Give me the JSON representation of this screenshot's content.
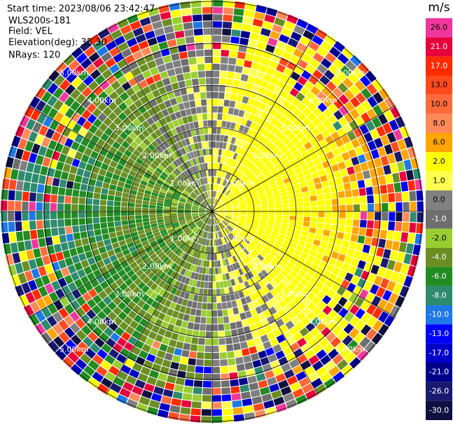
{
  "header": {
    "start_time": "Start time: 2023/08/06 23:42:47",
    "instrument": "WLS200s-181",
    "field": "Field: VEL",
    "elevation": "Elevation(deg): 35.30",
    "nrays": "NRays: 120"
  },
  "colorbar": {
    "unit": "m/s",
    "levels": [
      {
        "value": 26,
        "label": "26.0",
        "color": "#f0389c"
      },
      {
        "value": 21,
        "label": "21.0",
        "color": "#e8003c"
      },
      {
        "value": 17,
        "label": "17.0",
        "color": "#ff2a00"
      },
      {
        "value": 13,
        "label": "13.0",
        "color": "#ff4a1e"
      },
      {
        "value": 10,
        "label": "10.0",
        "color": "#ff6a3c"
      },
      {
        "value": 8,
        "label": "8.0",
        "color": "#ff8a5a"
      },
      {
        "value": 6,
        "label": "6.0",
        "color": "#ffa500"
      },
      {
        "value": 2,
        "label": "2.0",
        "color": "#ffff00"
      },
      {
        "value": 1,
        "label": "1.0",
        "color": "#ffff50"
      },
      {
        "value": 0,
        "label": "0.0",
        "color": "#808080"
      },
      {
        "value": -1,
        "label": "-1.0",
        "color": "#6e6e6e"
      },
      {
        "value": -2,
        "label": "-2.0",
        "color": "#9acd32"
      },
      {
        "value": -4,
        "label": "-4.0",
        "color": "#6b8e23"
      },
      {
        "value": -6,
        "label": "-6.0",
        "color": "#228b22"
      },
      {
        "value": -8,
        "label": "-8.0",
        "color": "#2e8b6e"
      },
      {
        "value": -10,
        "label": "-10.0",
        "color": "#1e78e6"
      },
      {
        "value": -13,
        "label": "-13.0",
        "color": "#0000ff"
      },
      {
        "value": -17,
        "label": "-17.0",
        "color": "#0000c8"
      },
      {
        "value": -21,
        "label": "-21.0",
        "color": "#00008b"
      },
      {
        "value": -26,
        "label": "-26.0",
        "color": "#191970"
      },
      {
        "value": -30,
        "label": "-30.0",
        "color": "#101040"
      }
    ]
  },
  "range_rings": [
    "1.00km",
    "2.00km",
    "3.00km",
    "4.00km",
    "5.00km"
  ]
}
